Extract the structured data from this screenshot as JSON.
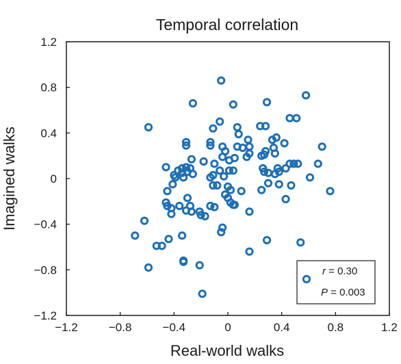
{
  "chart_data": {
    "type": "scatter",
    "title": "Temporal correlation",
    "xlabel": "Real-world walks",
    "ylabel": "Imagined walks",
    "xlim": [
      -1.2,
      1.2
    ],
    "ylim": [
      -1.2,
      1.2
    ],
    "xticks": [
      "−1.2",
      "−0.8",
      "−0.4",
      "0",
      "0.4",
      "0.8",
      "1.2"
    ],
    "yticks": [
      "−1.2",
      "−0.8",
      "−0.4",
      "0",
      "0.4",
      "0.8",
      "1.2"
    ],
    "xtick_values": [
      -1.2,
      -0.8,
      -0.4,
      0,
      0.4,
      0.8,
      1.2
    ],
    "ytick_values": [
      -1.2,
      -0.8,
      -0.4,
      0,
      0.4,
      0.8,
      1.2
    ],
    "grid": false,
    "legend_position": "bottom-right",
    "marker_color": "#1f6fb2",
    "annotations": {
      "r_label": "r",
      "r_value": " = 0.30",
      "p_label": "P",
      "p_value": " = 0.003"
    },
    "points": [
      [
        -0.05,
        0.86
      ],
      [
        0.58,
        0.73
      ],
      [
        -0.26,
        0.66
      ],
      [
        0.04,
        0.65
      ],
      [
        0.29,
        0.67
      ],
      [
        -0.59,
        0.45
      ],
      [
        -0.06,
        0.5
      ],
      [
        -0.11,
        0.44
      ],
      [
        0.07,
        0.45
      ],
      [
        0.08,
        0.39
      ],
      [
        0.24,
        0.46
      ],
      [
        0.28,
        0.46
      ],
      [
        0.46,
        0.53
      ],
      [
        0.51,
        0.53
      ],
      [
        -0.31,
        0.32
      ],
      [
        -0.31,
        0.29
      ],
      [
        -0.13,
        0.32
      ],
      [
        -0.13,
        0.29
      ],
      [
        -0.04,
        0.28
      ],
      [
        0.07,
        0.28
      ],
      [
        0.11,
        0.27
      ],
      [
        0.15,
        0.34
      ],
      [
        0.16,
        0.28
      ],
      [
        0.33,
        0.34
      ],
      [
        0.36,
        0.36
      ],
      [
        0.34,
        0.27
      ],
      [
        0.35,
        0.22
      ],
      [
        0.42,
        0.31
      ],
      [
        0.28,
        0.24
      ],
      [
        0.27,
        0.21
      ],
      [
        0.25,
        0.2
      ],
      [
        0.7,
        0.28
      ],
      [
        -0.02,
        0.24
      ],
      [
        -0.04,
        0.19
      ],
      [
        0.05,
        0.18
      ],
      [
        0.01,
        0.16
      ],
      [
        -0.27,
        0.17
      ],
      [
        -0.18,
        0.15
      ],
      [
        -0.1,
        0.13
      ],
      [
        0.16,
        0.22
      ],
      [
        0.14,
        0.19
      ],
      [
        0.67,
        0.13
      ],
      [
        0.49,
        0.13
      ],
      [
        0.52,
        0.13
      ],
      [
        0.46,
        0.13
      ],
      [
        -0.46,
        0.1
      ],
      [
        -0.34,
        0.09
      ],
      [
        -0.31,
        0.1
      ],
      [
        -0.28,
        0.09
      ],
      [
        -0.37,
        0.07
      ],
      [
        -0.34,
        0.05
      ],
      [
        -0.3,
        0.06
      ],
      [
        -0.4,
        0.03
      ],
      [
        -0.39,
        0.01
      ],
      [
        -0.33,
        0.01
      ],
      [
        -0.26,
        0.04
      ],
      [
        -0.06,
        0.07
      ],
      [
        0.01,
        0.07
      ],
      [
        0.04,
        0.07
      ],
      [
        -0.13,
        0.01
      ],
      [
        -0.11,
        0.03
      ],
      [
        -0.03,
        0.02
      ],
      [
        0.26,
        0.09
      ],
      [
        0.27,
        0.06
      ],
      [
        0.3,
        0.05
      ],
      [
        0.37,
        0.09
      ],
      [
        0.38,
        0.06
      ],
      [
        0.43,
        0.09
      ],
      [
        0.35,
        0.04
      ],
      [
        0.61,
        0.01
      ],
      [
        -0.41,
        -0.05
      ],
      [
        -0.11,
        -0.06
      ],
      [
        -0.08,
        -0.06
      ],
      [
        0.0,
        -0.07
      ],
      [
        0.02,
        -0.1
      ],
      [
        0.1,
        -0.11
      ],
      [
        0.25,
        -0.1
      ],
      [
        0.3,
        -0.04
      ],
      [
        0.38,
        -0.05
      ],
      [
        0.47,
        -0.06
      ],
      [
        0.76,
        -0.11
      ],
      [
        -0.45,
        -0.11
      ],
      [
        0.43,
        -0.18
      ],
      [
        -0.3,
        -0.17
      ],
      [
        -0.02,
        -0.14
      ],
      [
        0.0,
        -0.17
      ],
      [
        0.02,
        -0.21
      ],
      [
        0.04,
        -0.23
      ],
      [
        -0.46,
        -0.21
      ],
      [
        -0.45,
        -0.24
      ],
      [
        -0.42,
        -0.26
      ],
      [
        -0.36,
        -0.24
      ],
      [
        -0.28,
        -0.24
      ],
      [
        -0.27,
        -0.29
      ],
      [
        -0.31,
        -0.28
      ],
      [
        -0.2,
        -0.32
      ],
      [
        -0.17,
        -0.33
      ],
      [
        -0.13,
        -0.24
      ],
      [
        -0.1,
        -0.25
      ],
      [
        -0.42,
        -0.31
      ],
      [
        -0.21,
        -0.29
      ],
      [
        0.05,
        -0.23
      ],
      [
        0.16,
        -0.29
      ],
      [
        -0.62,
        -0.37
      ],
      [
        -0.04,
        -0.43
      ],
      [
        -0.05,
        -0.47
      ],
      [
        -0.69,
        -0.5
      ],
      [
        -0.44,
        -0.53
      ],
      [
        -0.34,
        -0.5
      ],
      [
        0.29,
        -0.54
      ],
      [
        0.54,
        -0.56
      ],
      [
        -0.53,
        -0.59
      ],
      [
        -0.49,
        -0.59
      ],
      [
        0.16,
        -0.64
      ],
      [
        -0.33,
        -0.72
      ],
      [
        -0.33,
        -0.73
      ],
      [
        -0.59,
        -0.78
      ],
      [
        -0.21,
        -0.76
      ],
      [
        -0.19,
        -1.01
      ]
    ]
  }
}
